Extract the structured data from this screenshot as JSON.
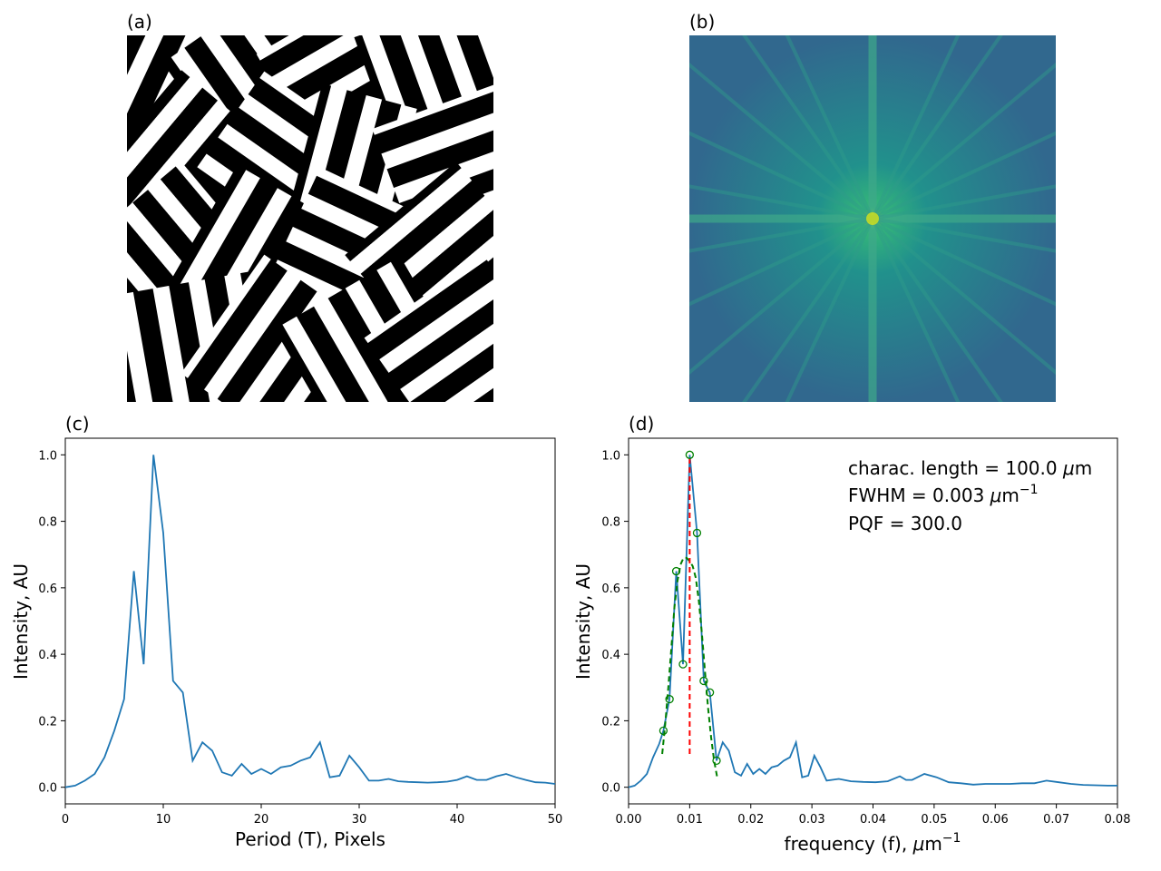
{
  "panels": {
    "a": {
      "label": "(a)"
    },
    "b": {
      "label": "(b)"
    },
    "c": {
      "label": "(c)"
    },
    "d": {
      "label": "(d)"
    }
  },
  "annotation": {
    "length_prefix": "charac. length = 100.0 ",
    "mu": "μ",
    "length_unit": "m",
    "fwhm_prefix": "FWHM = 0.003 ",
    "fwhm_unit": "m",
    "fwhm_exp": "−1",
    "pqf": "PQF = 300.0"
  },
  "colors": {
    "line": "#1f77b4",
    "fit": "#008000",
    "peak": "#ff0000"
  },
  "chart_data": [
    {
      "type": "line",
      "panel": "(c)",
      "xlabel": "Period (T), Pixels",
      "ylabel": "Intensity, AU",
      "xlim": [
        0,
        50
      ],
      "ylim": [
        -0.05,
        1.05
      ],
      "xticks": [
        0,
        10,
        20,
        30,
        40,
        50
      ],
      "yticks": [
        0.0,
        0.2,
        0.4,
        0.6,
        0.8,
        1.0
      ],
      "x": [
        0,
        1,
        2,
        3,
        4,
        5,
        6,
        7,
        8,
        9,
        10,
        11,
        12,
        13,
        14,
        15,
        16,
        17,
        18,
        19,
        20,
        21,
        22,
        23,
        24,
        25,
        26,
        27,
        28,
        29,
        30,
        31,
        32,
        33,
        34,
        35,
        36,
        37,
        38,
        39,
        40,
        41,
        42,
        43,
        44,
        45,
        46,
        47,
        48,
        49,
        50
      ],
      "y": [
        0.0,
        0.005,
        0.02,
        0.04,
        0.09,
        0.17,
        0.265,
        0.65,
        0.37,
        1.0,
        0.765,
        0.32,
        0.285,
        0.08,
        0.135,
        0.11,
        0.045,
        0.035,
        0.07,
        0.04,
        0.055,
        0.04,
        0.06,
        0.065,
        0.08,
        0.09,
        0.135,
        0.03,
        0.035,
        0.095,
        0.06,
        0.02,
        0.02,
        0.025,
        0.018,
        0.016,
        0.015,
        0.014,
        0.015,
        0.017,
        0.022,
        0.033,
        0.022,
        0.022,
        0.033,
        0.04,
        0.03,
        0.022,
        0.015,
        0.014,
        0.01
      ]
    },
    {
      "type": "line",
      "panel": "(d)",
      "xlabel_prefix": "frequency (f), ",
      "xlabel_unit": "m",
      "xlabel_exp": "−1",
      "ylabel": "Intensity, AU",
      "xlim": [
        0,
        0.08
      ],
      "ylim": [
        -0.05,
        1.05
      ],
      "xticks": [
        0.0,
        0.01,
        0.02,
        0.03,
        0.04,
        0.05,
        0.06,
        0.07,
        0.08
      ],
      "yticks": [
        0.0,
        0.2,
        0.4,
        0.6,
        0.8,
        1.0
      ],
      "series": [
        {
          "x": [
            0,
            0.001,
            0.002,
            0.003,
            0.004,
            0.005,
            0.0057,
            0.0067,
            0.0078,
            0.0089,
            0.01,
            0.0112,
            0.0123,
            0.0133,
            0.0144,
            0.0154,
            0.0164,
            0.0174,
            0.0184,
            0.0194,
            0.0204,
            0.0214,
            0.0224,
            0.0234,
            0.0244,
            0.0254,
            0.0264,
            0.0274,
            0.0284,
            0.0294,
            0.0304,
            0.0314,
            0.0324,
            0.0344,
            0.0364,
            0.0384,
            0.0404,
            0.0424,
            0.0444,
            0.0454,
            0.0464,
            0.0484,
            0.0504,
            0.0524,
            0.0544,
            0.0564,
            0.0584,
            0.0604,
            0.0624,
            0.0644,
            0.0664,
            0.0684,
            0.0704,
            0.0724,
            0.0744,
            0.0764,
            0.0784,
            0.08
          ],
          "y": [
            0.0,
            0.005,
            0.02,
            0.04,
            0.09,
            0.13,
            0.17,
            0.265,
            0.65,
            0.37,
            1.0,
            0.765,
            0.32,
            0.285,
            0.08,
            0.135,
            0.11,
            0.045,
            0.035,
            0.07,
            0.04,
            0.055,
            0.04,
            0.06,
            0.065,
            0.08,
            0.09,
            0.135,
            0.03,
            0.035,
            0.095,
            0.06,
            0.02,
            0.025,
            0.018,
            0.016,
            0.015,
            0.018,
            0.033,
            0.022,
            0.022,
            0.04,
            0.03,
            0.015,
            0.012,
            0.008,
            0.01,
            0.01,
            0.01,
            0.012,
            0.012,
            0.02,
            0.015,
            0.01,
            0.007,
            0.006,
            0.005,
            0.005
          ]
        }
      ],
      "markers": {
        "x": [
          0.0057,
          0.0067,
          0.0078,
          0.0089,
          0.01,
          0.0112,
          0.0123,
          0.0133,
          0.0144
        ],
        "y": [
          0.17,
          0.265,
          0.65,
          0.37,
          1.0,
          0.765,
          0.32,
          0.285,
          0.08
        ]
      },
      "fit": {
        "x": [
          0.0055,
          0.006,
          0.0065,
          0.007,
          0.0075,
          0.008,
          0.0085,
          0.009,
          0.0095,
          0.01,
          0.0105,
          0.011,
          0.0115,
          0.012,
          0.0125,
          0.013,
          0.0135,
          0.014,
          0.0145
        ],
        "y": [
          0.1,
          0.19,
          0.3,
          0.42,
          0.54,
          0.62,
          0.67,
          0.69,
          0.69,
          0.68,
          0.665,
          0.63,
          0.56,
          0.46,
          0.35,
          0.24,
          0.15,
          0.08,
          0.03
        ]
      },
      "peak_line": {
        "x": 0.01,
        "y": [
          0.1,
          1.0
        ]
      }
    }
  ]
}
